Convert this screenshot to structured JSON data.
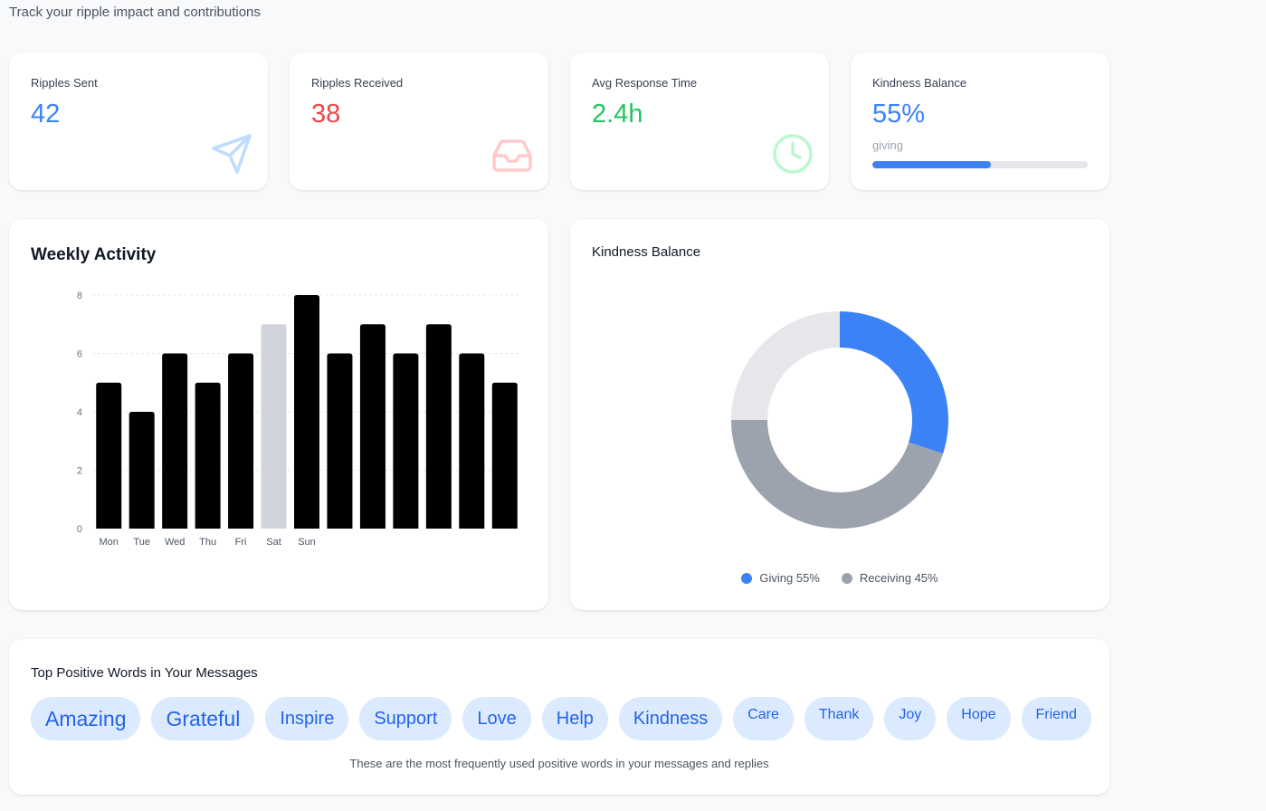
{
  "header": {
    "subtitle": "Track your ripple impact and contributions"
  },
  "stats": {
    "sent": {
      "label": "Ripples Sent",
      "value": "42",
      "color": "#3b82f6",
      "icon": "send-icon"
    },
    "received": {
      "label": "Ripples Received",
      "value": "38",
      "color": "#ef4444",
      "icon": "inbox-icon"
    },
    "response": {
      "label": "Avg Response Time",
      "value": "2.4h",
      "color": "#22c55e",
      "icon": "clock-icon"
    },
    "balance": {
      "label": "Kindness Balance",
      "value": "55%",
      "sub": "giving",
      "progress": 0.55,
      "color": "#3b82f6"
    }
  },
  "weekly": {
    "title": "Weekly Activity",
    "chart_data": {
      "type": "bar",
      "categories": [
        "Mon",
        "Tue",
        "Wed",
        "Thu",
        "Fri",
        "Sat",
        "Sun",
        "",
        "",
        "",
        "",
        "",
        ""
      ],
      "values": [
        5,
        4,
        6,
        5,
        6,
        7,
        8,
        6,
        7,
        6,
        7,
        6,
        5
      ],
      "highlight_index": 5,
      "bar_color": "#000000",
      "highlight_color": "#d1d5db",
      "ylim": [
        0,
        8
      ],
      "yticks": [
        0,
        2,
        4,
        6,
        8
      ],
      "grid": true
    }
  },
  "balance_chart": {
    "title": "Kindness Balance",
    "chart_data": {
      "type": "pie",
      "donut": true,
      "labels": [
        "Giving",
        "Receiving"
      ],
      "values": [
        55,
        45
      ],
      "colors": [
        "#3b82f6",
        "#9ca3af"
      ],
      "track_color": "#e5e7eb"
    },
    "legend": [
      {
        "label": "Giving 55%",
        "color": "#3b82f6"
      },
      {
        "label": "Receiving 45%",
        "color": "#9ca3af"
      }
    ]
  },
  "words": {
    "title": "Top Positive Words in Your Messages",
    "items": [
      {
        "word": "Amazing",
        "size": "xl"
      },
      {
        "word": "Grateful",
        "size": "xl"
      },
      {
        "word": "Inspire",
        "size": "lg"
      },
      {
        "word": "Support",
        "size": "lg"
      },
      {
        "word": "Love",
        "size": "lg"
      },
      {
        "word": "Help",
        "size": "lg"
      },
      {
        "word": "Kindness",
        "size": "lg"
      },
      {
        "word": "Care",
        "size": "md"
      },
      {
        "word": "Thank",
        "size": "md"
      },
      {
        "word": "Joy",
        "size": "md"
      },
      {
        "word": "Hope",
        "size": "md"
      },
      {
        "word": "Friend",
        "size": "md"
      }
    ],
    "note": "These are the most frequently used positive words in your messages and replies"
  }
}
